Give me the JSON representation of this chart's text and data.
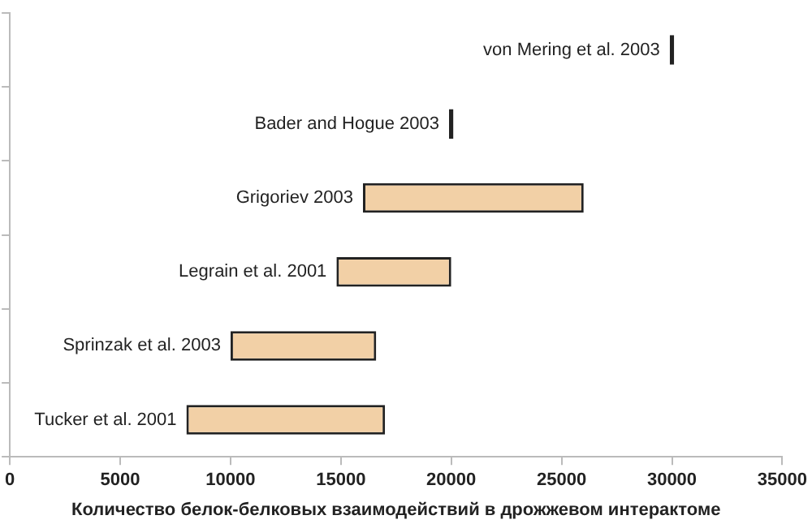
{
  "chart_data": {
    "type": "bar",
    "orientation": "horizontal",
    "xlabel": "Количество белок-белковых взаимодействий в дрожжевом интерактоме",
    "categories": [
      "von Mering et al. 2003",
      "Bader and Hogue 2003",
      "Grigoriev 2003",
      "Legrain et al. 2001",
      "Sprinzak et al. 2003",
      "Tucker et al. 2001"
    ],
    "base": [
      29900,
      19900,
      16000,
      14800,
      10000,
      8000
    ],
    "values": [
      200,
      200,
      10000,
      5200,
      6600,
      9000
    ],
    "colors": [
      "#222222",
      "#222222",
      "#f2d0a6",
      "#f2d0a6",
      "#f2d0a6",
      "#f2d0a6"
    ],
    "xlim": [
      0,
      35000
    ],
    "xticks": [
      0,
      5000,
      10000,
      15000,
      20000,
      25000,
      30000,
      35000
    ],
    "tick_labels": "x",
    "grid": false,
    "legend": false
  }
}
